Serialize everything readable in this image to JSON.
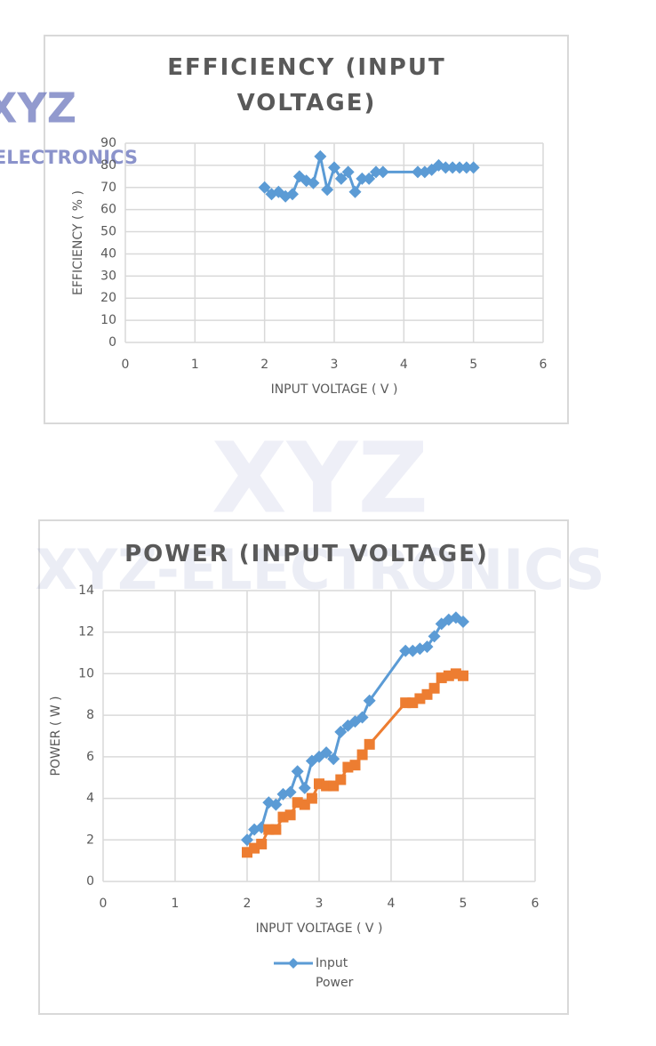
{
  "watermark": {
    "logo": "XYZ",
    "text": "XYZ-ELECTRONICS"
  },
  "chart_data": [
    {
      "type": "line",
      "title": "EFFICIENCY (INPUT VOLTAGE)",
      "xlabel": "INPUT VOLTAGE ( V )",
      "ylabel": "EFFICIENCY ( % )",
      "x": [
        2.0,
        2.1,
        2.2,
        2.3,
        2.4,
        2.5,
        2.6,
        2.7,
        2.8,
        2.9,
        3.0,
        3.1,
        3.2,
        3.3,
        3.4,
        3.5,
        3.6,
        3.7,
        4.2,
        4.3,
        4.4,
        4.5,
        4.6,
        4.7,
        4.8,
        4.9,
        5.0
      ],
      "series": [
        {
          "color": "#5b9bd5",
          "marker": "diamond",
          "values": [
            70,
            67,
            68,
            66,
            67,
            75,
            73,
            72,
            84,
            69,
            79,
            74,
            77,
            68,
            74,
            74,
            77,
            77,
            77,
            77,
            78,
            80,
            79,
            79,
            79,
            79,
            79
          ]
        }
      ],
      "xlim": [
        0,
        6
      ],
      "xticks": [
        0,
        1,
        2,
        3,
        4,
        5,
        6
      ],
      "ylim": [
        0,
        90
      ],
      "yticks": [
        0,
        10,
        20,
        30,
        40,
        50,
        60,
        70,
        80,
        90
      ],
      "grid": true
    },
    {
      "type": "line",
      "title": "POWER (INPUT VOLTAGE)",
      "xlabel": "INPUT VOLTAGE ( V )",
      "ylabel": "POWER ( W )",
      "x": [
        2.0,
        2.1,
        2.2,
        2.3,
        2.4,
        2.5,
        2.6,
        2.7,
        2.8,
        2.9,
        3.0,
        3.1,
        3.2,
        3.3,
        3.4,
        3.5,
        3.6,
        3.7,
        4.2,
        4.3,
        4.4,
        4.5,
        4.6,
        4.7,
        4.8,
        4.9,
        5.0
      ],
      "series": [
        {
          "name": "Input Power",
          "color": "#5b9bd5",
          "marker": "diamond",
          "values": [
            2.0,
            2.5,
            2.6,
            3.8,
            3.7,
            4.2,
            4.3,
            5.3,
            4.5,
            5.8,
            6.0,
            6.2,
            5.9,
            7.2,
            7.5,
            7.7,
            7.9,
            8.7,
            11.1,
            11.1,
            11.2,
            11.3,
            11.8,
            12.4,
            12.6,
            12.7,
            12.5
          ]
        },
        {
          "color": "#ed7d31",
          "marker": "square",
          "values": [
            1.4,
            1.6,
            1.8,
            2.5,
            2.5,
            3.1,
            3.2,
            3.8,
            3.7,
            4.0,
            4.7,
            4.6,
            4.6,
            4.9,
            5.5,
            5.6,
            6.1,
            6.6,
            8.6,
            8.6,
            8.8,
            9.0,
            9.3,
            9.8,
            9.9,
            10.0,
            9.9
          ]
        }
      ],
      "xlim": [
        0,
        6
      ],
      "xticks": [
        0,
        1,
        2,
        3,
        4,
        5,
        6
      ],
      "ylim": [
        0,
        14
      ],
      "yticks": [
        0,
        2,
        4,
        6,
        8,
        10,
        12,
        14
      ],
      "grid": true,
      "legend": "bottom"
    }
  ]
}
